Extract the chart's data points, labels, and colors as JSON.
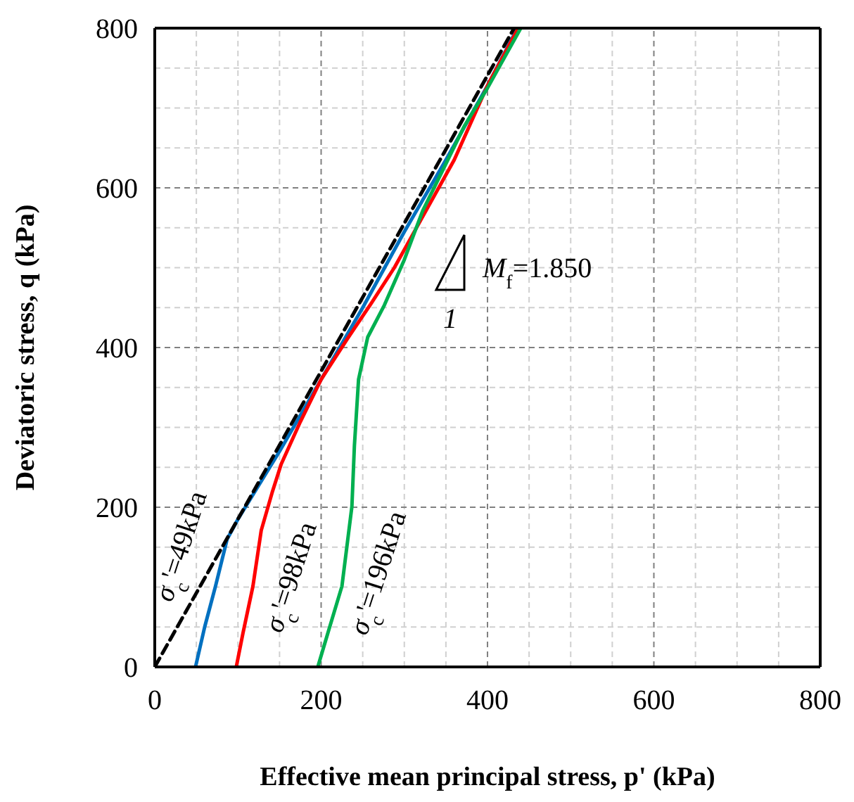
{
  "chart_data": {
    "type": "line",
    "xlabel": "Effective mean principal stress, p' (kPa)",
    "ylabel": "Deviatoric stress, q (kPa)",
    "xlim": [
      0,
      800
    ],
    "ylim": [
      0,
      800
    ],
    "xticks": [
      0,
      {
        "value": 50,
        "label": null
      },
      {
        "value": 100,
        "label": null
      },
      {
        "value": 150,
        "label": null
      },
      200,
      {
        "value": 250,
        "label": null
      },
      {
        "value": 300,
        "label": null
      },
      {
        "value": 350,
        "label": null
      },
      400,
      {
        "value": 450,
        "label": null
      },
      {
        "value": 500,
        "label": null
      },
      {
        "value": 550,
        "label": null
      },
      600,
      {
        "value": 650,
        "label": null
      },
      {
        "value": 700,
        "label": null
      },
      {
        "value": 750,
        "label": null
      },
      800
    ],
    "yticks": [
      0,
      {
        "value": 50,
        "label": null
      },
      {
        "value": 100,
        "label": null
      },
      {
        "value": 150,
        "label": null
      },
      200,
      {
        "value": 250,
        "label": null
      },
      {
        "value": 300,
        "label": null
      },
      {
        "value": 350,
        "label": null
      },
      400,
      {
        "value": 450,
        "label": null
      },
      {
        "value": 500,
        "label": null
      },
      {
        "value": 550,
        "label": null
      },
      600,
      {
        "value": 650,
        "label": null
      },
      {
        "value": 700,
        "label": null
      },
      {
        "value": 750,
        "label": null
      },
      800
    ],
    "grid": true,
    "series": [
      {
        "color": "#0070c0",
        "x": [
          49,
          60,
          73,
          87,
          100,
          113,
          150,
          200,
          250,
          300,
          350,
          400,
          436
        ],
        "values": [
          0,
          50,
          101,
          160,
          185,
          207,
          270,
          360,
          450,
          545,
          635,
          728,
          800
        ]
      },
      {
        "color": "#ff0000",
        "x": [
          98,
          106,
          118,
          128,
          141,
          152,
          175,
          200,
          231,
          260,
          288,
          320,
          360,
          400,
          437
        ],
        "values": [
          0,
          42,
          101,
          171,
          218,
          254,
          307,
          360,
          410,
          455,
          500,
          560,
          635,
          728,
          800
        ]
      },
      {
        "color": "#00b050",
        "x": [
          196,
          208,
          225,
          237,
          240,
          245,
          256,
          276,
          300,
          322,
          350,
          372,
          400,
          440
        ],
        "values": [
          0,
          42,
          101,
          201,
          277,
          360,
          413,
          453,
          510,
          571,
          630,
          677,
          725,
          800
        ]
      },
      {
        "color": "#000000",
        "line_style": "dashed",
        "x": [
          0,
          432
        ],
        "values": [
          0,
          800
        ]
      }
    ],
    "annotations": [
      "σ$_{c}$'=49kPa",
      "σ$_{c}$'=98kPa",
      "σ$_{c}$'=196kPa",
      "M$_{f}$=1.850",
      "1"
    ]
  }
}
